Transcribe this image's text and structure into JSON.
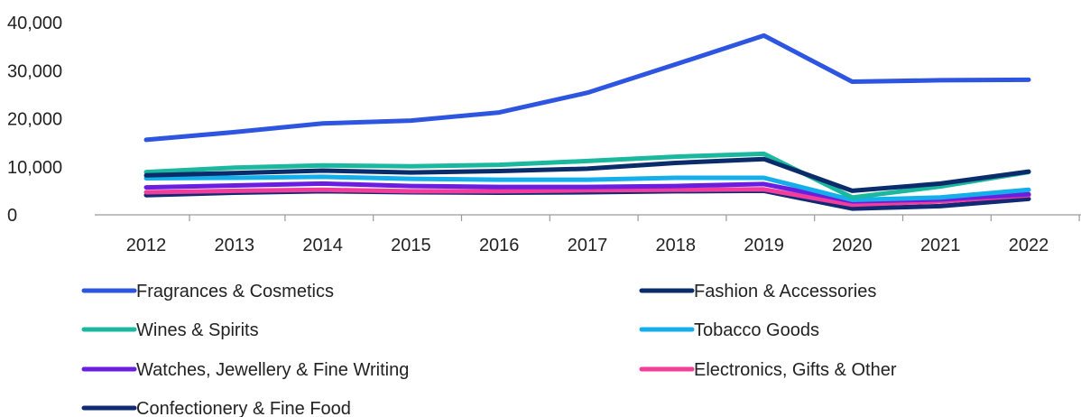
{
  "chart_data": {
    "type": "line",
    "x": [
      "2012",
      "2013",
      "2014",
      "2015",
      "2016",
      "2017",
      "2018",
      "2019",
      "2020",
      "2021",
      "2022"
    ],
    "ylim": [
      0,
      40000
    ],
    "yticks": [
      {
        "value": 0,
        "label": "0"
      },
      {
        "value": 10000,
        "label": "10,000"
      },
      {
        "value": 20000,
        "label": "20,000"
      },
      {
        "value": 30000,
        "label": "30,000"
      },
      {
        "value": 40000,
        "label": "40,000"
      }
    ],
    "grid": false,
    "legend": "bottom",
    "series": [
      {
        "name": "Fragrances & Cosmetics",
        "color": "#2E55E0",
        "values": [
          15600,
          17200,
          19000,
          19600,
          21300,
          25400,
          31300,
          37300,
          27700,
          28000,
          28100
        ]
      },
      {
        "name": "Fashion & Accessories",
        "color": "#0B2C6B",
        "values": [
          8200,
          8700,
          9200,
          8800,
          9100,
          9600,
          10800,
          11600,
          5000,
          6500,
          9000
        ]
      },
      {
        "name": "Wines & Spirits",
        "color": "#1BB8A0",
        "values": [
          8900,
          9800,
          10300,
          10100,
          10400,
          11200,
          12100,
          12700,
          3600,
          5900,
          8900
        ]
      },
      {
        "name": "Tobacco Goods",
        "color": "#14AEEA",
        "values": [
          7600,
          7700,
          7900,
          7500,
          7300,
          7300,
          7700,
          7700,
          3100,
          3600,
          5200
        ]
      },
      {
        "name": "Watches, Jewellery & Fine Writing",
        "color": "#6A1FE0",
        "values": [
          5700,
          6100,
          6500,
          6000,
          5800,
          5800,
          6000,
          6400,
          2800,
          3200,
          4300
        ]
      },
      {
        "name": "Electronics, Gifts & Other",
        "color": "#F23D9A",
        "values": [
          4700,
          5000,
          5200,
          4900,
          4900,
          5100,
          5200,
          5300,
          2100,
          2800,
          4100
        ]
      },
      {
        "name": "Confectionery & Fine Food",
        "color": "#102A75",
        "values": [
          4100,
          4600,
          4900,
          4700,
          4600,
          4700,
          4900,
          5000,
          1300,
          1800,
          3300
        ]
      }
    ]
  }
}
